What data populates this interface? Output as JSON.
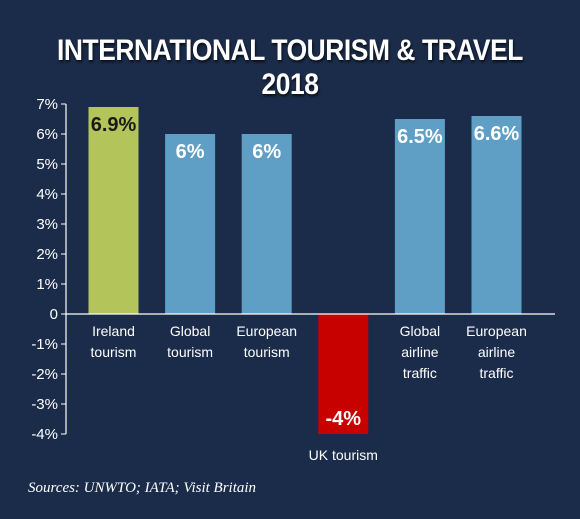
{
  "chart_data": {
    "type": "bar",
    "title": "INTERNATIONAL TOURISM & TRAVEL 2018",
    "categories": [
      [
        "Ireland",
        "tourism"
      ],
      [
        "Global",
        "tourism"
      ],
      [
        "European",
        "tourism"
      ],
      [
        "UK tourism"
      ],
      [
        "Global",
        "airline",
        "traffic"
      ],
      [
        "European",
        "airline",
        "traffic"
      ]
    ],
    "values": [
      6.9,
      6,
      6,
      -4,
      6.5,
      6.6
    ],
    "value_labels": [
      "6.9%",
      "6%",
      "6%",
      "-4%",
      "6.5%",
      "6.6%"
    ],
    "bar_colors": [
      "#b3c45a",
      "#5f9fc6",
      "#5f9fc6",
      "#c70000",
      "#5f9fc6",
      "#5f9fc6"
    ],
    "value_label_colors": [
      "#1a1a1a",
      "#ffffff",
      "#ffffff",
      "#ffffff",
      "#ffffff",
      "#ffffff"
    ],
    "ylim": [
      -4,
      7
    ],
    "yticks": [
      7,
      6,
      5,
      4,
      3,
      2,
      1,
      0,
      -1,
      -2,
      -3,
      -4
    ],
    "ytick_labels": [
      "7%",
      "6%",
      "5%",
      "4%",
      "3%",
      "2%",
      "1%",
      "0",
      "-1%",
      "-2%",
      "-3%",
      "-4%"
    ],
    "xlabel": "",
    "ylabel": "",
    "grid": false,
    "legend": "none",
    "background": "#1b2c4a"
  },
  "source": "Sources: UNWTO; IATA; Visit Britain"
}
